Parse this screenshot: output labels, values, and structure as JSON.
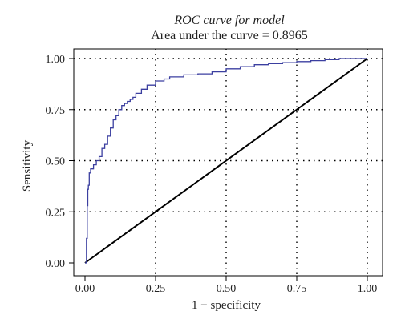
{
  "chart_data": {
    "type": "line",
    "title": "ROC curve for model",
    "subtitle": "Area under the curve = 0.8965",
    "xlabel": "1 − specificity",
    "ylabel": "Sensitivity",
    "xlim": [
      0,
      1
    ],
    "ylim": [
      0,
      1
    ],
    "x_ticks": [
      "0.00",
      "0.25",
      "0.50",
      "0.75",
      "1.00"
    ],
    "y_ticks": [
      "0.00",
      "0.25",
      "0.50",
      "0.75",
      "1.00"
    ],
    "grid": true,
    "series": [
      {
        "color": "#3b3fa0",
        "x": [
          0.0,
          0.005,
          0.008,
          0.01,
          0.012,
          0.015,
          0.02,
          0.03,
          0.04,
          0.05,
          0.06,
          0.07,
          0.08,
          0.09,
          0.1,
          0.11,
          0.12,
          0.13,
          0.14,
          0.15,
          0.16,
          0.17,
          0.18,
          0.2,
          0.22,
          0.25,
          0.28,
          0.3,
          0.35,
          0.4,
          0.45,
          0.5,
          0.55,
          0.6,
          0.65,
          0.7,
          0.75,
          0.8,
          0.85,
          0.9,
          0.95,
          1.0
        ],
        "y": [
          0.0,
          0.12,
          0.28,
          0.36,
          0.38,
          0.44,
          0.46,
          0.48,
          0.5,
          0.52,
          0.56,
          0.58,
          0.62,
          0.66,
          0.7,
          0.72,
          0.75,
          0.77,
          0.78,
          0.79,
          0.8,
          0.81,
          0.83,
          0.85,
          0.87,
          0.89,
          0.9,
          0.91,
          0.92,
          0.925,
          0.935,
          0.95,
          0.96,
          0.97,
          0.975,
          0.98,
          0.985,
          0.99,
          0.995,
          1.0,
          1.0,
          1.0
        ]
      },
      {
        "color": "#000000",
        "x": [
          0,
          1
        ],
        "y": [
          0,
          1
        ]
      }
    ]
  }
}
